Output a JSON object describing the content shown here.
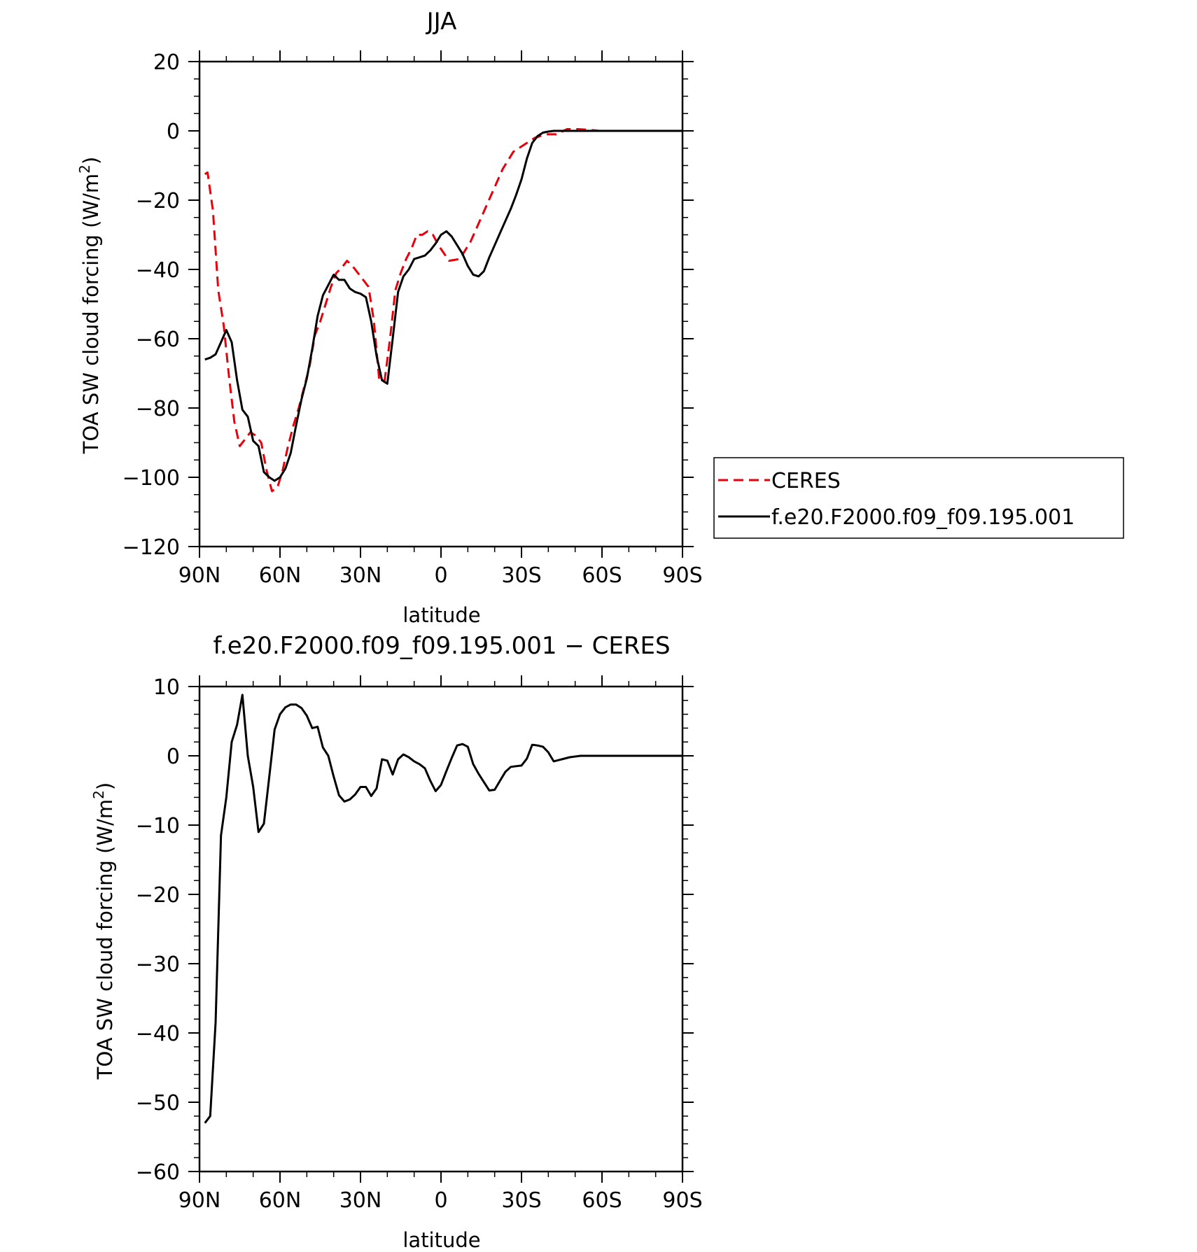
{
  "chart_data": [
    {
      "type": "line",
      "title": "JJA",
      "xlabel": "latitude",
      "ylabel": "TOA SW cloud forcing (W/m²)",
      "ylabel_main": "TOA SW cloud forcing (W/m",
      "ylabel_sup": "2",
      "ylabel_end": ")",
      "xlim": [
        90,
        -90
      ],
      "ylim": [
        -120,
        20
      ],
      "xticks": [
        90,
        60,
        30,
        0,
        -30,
        -60,
        -90
      ],
      "xtick_labels": [
        "90N",
        "60N",
        "30N",
        "0",
        "30S",
        "60S",
        "90S"
      ],
      "yticks": [
        20,
        0,
        -20,
        -40,
        -60,
        -80,
        -100,
        -120
      ],
      "ytick_labels": [
        "20",
        "0",
        "−20",
        "−40",
        "−60",
        "−80",
        "−100",
        "−120"
      ],
      "legend_position": "right",
      "series": [
        {
          "name": "CERES",
          "color": "#e8000b",
          "style": "dashed",
          "x": [
            88,
            87,
            85,
            83,
            81,
            79,
            77,
            75,
            73,
            71,
            69,
            67,
            65,
            63,
            61,
            59,
            57,
            55,
            53,
            51,
            49,
            47,
            45,
            43,
            41,
            39,
            37,
            35,
            33,
            31,
            29,
            27,
            25,
            23,
            21,
            19,
            17,
            15,
            13,
            11,
            9,
            7,
            5,
            3,
            1,
            -3,
            -7,
            -11,
            -15,
            -19,
            -23,
            -27,
            -31,
            -35,
            -39,
            -43,
            -47,
            -51,
            -55,
            -59,
            -62,
            -64,
            -66,
            -68,
            -70,
            -74,
            -78,
            -82,
            -86,
            -90
          ],
          "y": [
            -12.5,
            -12,
            -23,
            -46,
            -56,
            -71,
            -84,
            -91,
            -89,
            -87,
            -88,
            -90,
            -98,
            -104,
            -103,
            -98,
            -91,
            -85,
            -80,
            -74,
            -68,
            -59,
            -55,
            -50,
            -45,
            -41,
            -39.5,
            -37.5,
            -39,
            -41,
            -43,
            -45,
            -55,
            -72,
            -72,
            -60,
            -46,
            -41,
            -37,
            -34,
            -30,
            -30,
            -29,
            -30,
            -33,
            -37.5,
            -37,
            -32,
            -25,
            -18,
            -11,
            -6,
            -4,
            -2,
            -1,
            -1,
            0.5,
            0.5,
            0.3,
            0,
            0,
            0,
            0,
            0,
            0,
            0,
            0,
            0,
            0,
            0
          ]
        },
        {
          "name": "f.e20.F2000.f09_f09.195.001",
          "color": "#000000",
          "style": "solid",
          "x": [
            88,
            86,
            84,
            82,
            80,
            78,
            76,
            74,
            72,
            70,
            68,
            66,
            64,
            62,
            60,
            58,
            56,
            54,
            52,
            50,
            48,
            46,
            44,
            42,
            40,
            38,
            36,
            34,
            32,
            30,
            28,
            26,
            24,
            22,
            20,
            18,
            16,
            14,
            12,
            10,
            8,
            6,
            4,
            2,
            0,
            -2,
            -4,
            -6,
            -8,
            -10,
            -12,
            -14,
            -16,
            -18,
            -20,
            -22,
            -24,
            -26,
            -28,
            -30,
            -32,
            -34,
            -36,
            -38,
            -40,
            -42,
            -44,
            -46,
            -48,
            -50,
            -52,
            -54,
            -56,
            -58,
            -60,
            -62,
            -64,
            -66,
            -68,
            -70,
            -74,
            -78,
            -82,
            -86,
            -90
          ],
          "y": [
            -66,
            -65.5,
            -64.5,
            -61,
            -57.5,
            -61,
            -72,
            -80.5,
            -82.5,
            -89.5,
            -91,
            -98.5,
            -100,
            -101,
            -100,
            -97.5,
            -93,
            -85,
            -77.5,
            -71.5,
            -63,
            -53.5,
            -47.5,
            -44.5,
            -41.5,
            -43,
            -43,
            -45.5,
            -46.5,
            -47,
            -48,
            -55,
            -65,
            -72,
            -73,
            -60,
            -46.5,
            -42,
            -40,
            -37,
            -36.5,
            -36,
            -34.5,
            -32.5,
            -30,
            -29,
            -30.5,
            -33,
            -35.5,
            -39,
            -41.5,
            -42,
            -40.5,
            -36.5,
            -33,
            -29.5,
            -26,
            -22.5,
            -18.5,
            -14,
            -8,
            -3.5,
            -1.5,
            -0.5,
            -0.2,
            0,
            0,
            0,
            0,
            0,
            0,
            0,
            0,
            0,
            0,
            0,
            0,
            0,
            0,
            0,
            0,
            0,
            0,
            0,
            0
          ]
        }
      ]
    },
    {
      "type": "line",
      "title": "f.e20.F2000.f09_f09.195.001 − CERES",
      "xlabel": "latitude",
      "ylabel": "TOA SW cloud forcing (W/m²)",
      "ylabel_main": "TOA SW cloud forcing (W/m",
      "ylabel_sup": "2",
      "ylabel_end": ")",
      "xlim": [
        90,
        -90
      ],
      "ylim": [
        -60,
        10
      ],
      "xticks": [
        90,
        60,
        30,
        0,
        -30,
        -60,
        -90
      ],
      "xtick_labels": [
        "90N",
        "60N",
        "30N",
        "0",
        "30S",
        "60S",
        "90S"
      ],
      "yticks": [
        10,
        0,
        -10,
        -20,
        -30,
        -40,
        -50,
        -60
      ],
      "ytick_labels": [
        "10",
        "0",
        "−10",
        "−20",
        "−30",
        "−40",
        "−50",
        "−60"
      ],
      "series": [
        {
          "color": "#000000",
          "style": "solid",
          "x": [
            88,
            86,
            84,
            82,
            80,
            78,
            76,
            74,
            72,
            70,
            68,
            66,
            64,
            62,
            60,
            58,
            56,
            54,
            52,
            50,
            48,
            46,
            44,
            42,
            40,
            38,
            36,
            34,
            32,
            30,
            28,
            26,
            24,
            22,
            20,
            18,
            16,
            14,
            12,
            10,
            8,
            6,
            4,
            2,
            0,
            -2,
            -4,
            -6,
            -8,
            -10,
            -12,
            -14,
            -16,
            -18,
            -20,
            -22,
            -24,
            -26,
            -28,
            -30,
            -32,
            -34,
            -36,
            -38,
            -40,
            -42,
            -44,
            -46,
            -48,
            -50,
            -52,
            -54,
            -56,
            -58,
            -60,
            -62,
            -64,
            -66,
            -68,
            -70,
            -72,
            -74,
            -76,
            -78,
            -82,
            -86,
            -90
          ],
          "y": [
            -53,
            -52,
            -38.5,
            -11.5,
            -6,
            2,
            4.5,
            8.8,
            0,
            -4.5,
            -11,
            -9.8,
            -3,
            3.8,
            6,
            7,
            7.4,
            7.4,
            6.9,
            5.8,
            4,
            4.2,
            1.2,
            0,
            -3,
            -5.7,
            -6.6,
            -6.3,
            -5.6,
            -4.5,
            -4.5,
            -5.8,
            -4.7,
            -0.5,
            -0.7,
            -2.7,
            -0.5,
            0.2,
            -0.2,
            -0.8,
            -1.2,
            -1.8,
            -3.6,
            -5.1,
            -4.2,
            -2.2,
            -0.3,
            1.5,
            1.7,
            1.3,
            -1.2,
            -2.6,
            -3.8,
            -5,
            -4.9,
            -3.6,
            -2.3,
            -1.6,
            -1.5,
            -1.4,
            -0.4,
            1.6,
            1.5,
            1.3,
            0.5,
            -0.8,
            -0.6,
            -0.4,
            -0.2,
            -0.1,
            0,
            0,
            0,
            0,
            0,
            0,
            0,
            0,
            0,
            0,
            0,
            0,
            0,
            0,
            0,
            0,
            0
          ]
        }
      ]
    }
  ],
  "legend": {
    "items": [
      {
        "label": "CERES",
        "color": "#e8000b",
        "style": "dashed"
      },
      {
        "label": "f.e20.F2000.f09_f09.195.001",
        "color": "#000000",
        "style": "solid"
      }
    ]
  }
}
